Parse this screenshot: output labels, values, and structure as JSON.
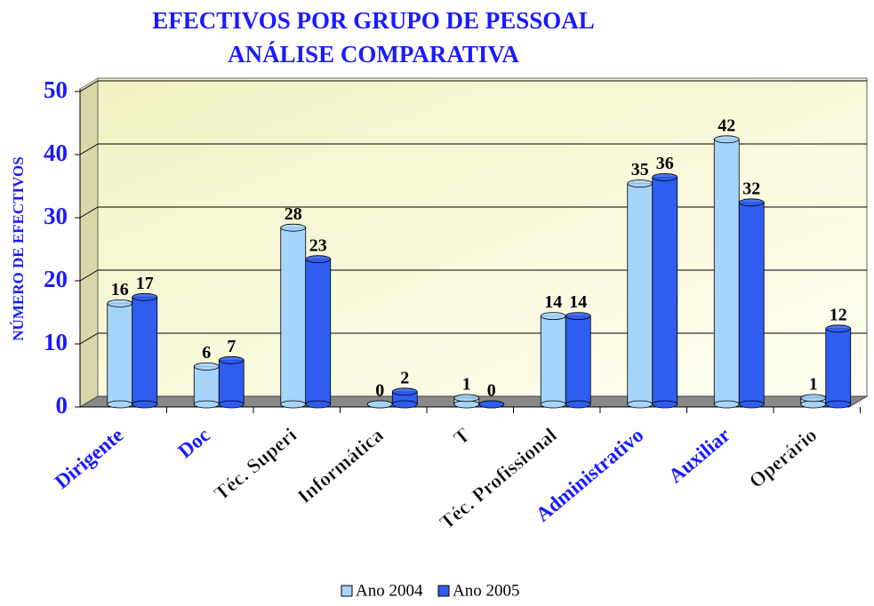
{
  "chart_data": {
    "type": "bar3d",
    "title": "EFECTIVOS POR GRUPO DE PESSOAL",
    "subtitle": "ANÁLISE COMPARATIVA",
    "y_label": "NÚMERO DE EFECTIVOS",
    "categories": [
      "Dirigente",
      "Doc",
      "Téc. Superi",
      "Informática",
      "T",
      "Téc. Profissional",
      "Administrativo",
      "Auxiliar",
      "Operário"
    ],
    "category_colors": [
      "#1a1aff",
      "#1a1aff",
      "#000000",
      "#000000",
      "#000000",
      "#000000",
      "#1a1aff",
      "#1a1aff",
      "#000000"
    ],
    "series": [
      {
        "name": "Ano 2004",
        "color": "#a6d4fb",
        "values": [
          16,
          6,
          28,
          0,
          1,
          14,
          35,
          42,
          1
        ]
      },
      {
        "name": "Ano 2005",
        "color": "#2e5df0",
        "values": [
          17,
          7,
          23,
          2,
          0,
          14,
          36,
          32,
          12
        ]
      }
    ],
    "ylim": [
      0,
      50
    ],
    "yticks": [
      0,
      10,
      20,
      30,
      40,
      50
    ],
    "grid": true,
    "legend": "bottom"
  }
}
